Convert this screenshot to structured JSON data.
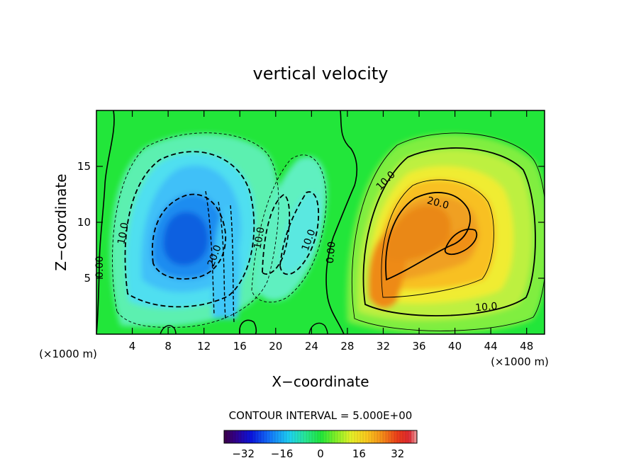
{
  "chart_data": {
    "type": "contour",
    "title": "vertical velocity",
    "xlabel": "X−coordinate",
    "ylabel": "Z−coordinate",
    "x_unit_left": "(×1000 m)",
    "x_unit_right": "(×1000 m)",
    "xlim": [
      0,
      50
    ],
    "ylim": [
      0,
      20
    ],
    "x_ticks": [
      4,
      8,
      12,
      16,
      20,
      24,
      28,
      32,
      36,
      40,
      44,
      48
    ],
    "x_tick_labels": [
      "4",
      "8",
      "12",
      "16",
      "20",
      "24",
      "28",
      "32",
      "36",
      "40",
      "44",
      "48"
    ],
    "y_ticks": [
      5,
      10,
      15
    ],
    "y_tick_labels": [
      "5",
      "10",
      "15"
    ],
    "contour_interval_text": "CONTOUR INTERVAL = 5.000E+00",
    "contour_labels": [
      {
        "text": "0.00",
        "x": 0.4,
        "y": 6.0,
        "angle": -90
      },
      {
        "text": "10.0",
        "x": 3.0,
        "y": 9.0,
        "angle": -80
      },
      {
        "text": "20.0",
        "x": 13.2,
        "y": 7.0,
        "angle": -70
      },
      {
        "text": "10.0",
        "x": 18.2,
        "y": 8.6,
        "angle": -80
      },
      {
        "text": "10.0",
        "x": 23.7,
        "y": 8.4,
        "angle": -70
      },
      {
        "text": "0.00",
        "x": 26.2,
        "y": 7.3,
        "angle": -85
      },
      {
        "text": "10.0",
        "x": 32.3,
        "y": 13.7,
        "angle": -45
      },
      {
        "text": "20.0",
        "x": 38.1,
        "y": 11.7,
        "angle": 15
      },
      {
        "text": "10.0",
        "x": 43.5,
        "y": 2.4,
        "angle": -5
      }
    ],
    "features": [
      {
        "kind": "downdraft",
        "x": 10,
        "z": 9,
        "peak": -26
      },
      {
        "kind": "downdraft",
        "x": 15,
        "z": 6,
        "peak": -24
      },
      {
        "kind": "downdraft",
        "x": 23,
        "z": 11,
        "peak": -14
      },
      {
        "kind": "updraft",
        "x": 32,
        "z": 6.5,
        "peak": 27
      },
      {
        "kind": "updraft",
        "x": 36,
        "z": 11,
        "peak": 24
      }
    ],
    "colorbar": {
      "range": [
        -40,
        40
      ],
      "tick_values": [
        -32,
        -16,
        0,
        16,
        32
      ],
      "tick_labels": [
        "−32",
        "−16",
        "0",
        "16",
        "32"
      ]
    }
  }
}
